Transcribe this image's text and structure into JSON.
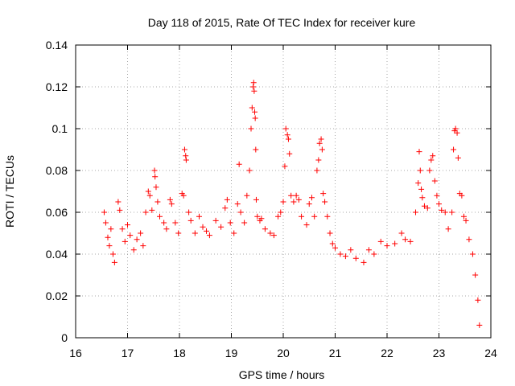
{
  "chart_data": {
    "type": "scatter",
    "title": "Day 118 of 2015, Rate Of TEC Index for receiver kure",
    "xlabel": "GPS time / hours",
    "ylabel": "ROTI / TECUs",
    "xlim": [
      16,
      24
    ],
    "ylim": [
      0,
      0.14
    ],
    "x_ticks": [
      "16",
      "17",
      "18",
      "19",
      "20",
      "21",
      "22",
      "23",
      "24"
    ],
    "y_ticks": [
      "0",
      "0.02",
      "0.04",
      "0.06",
      "0.08",
      "0.1",
      "0.12",
      "0.14"
    ],
    "grid": true,
    "marker": "+",
    "color": "#ff0000",
    "series": [
      {
        "values": [
          [
            16.55,
            0.06
          ],
          [
            16.58,
            0.055
          ],
          [
            16.62,
            0.048
          ],
          [
            16.65,
            0.044
          ],
          [
            16.68,
            0.052
          ],
          [
            16.72,
            0.04
          ],
          [
            16.75,
            0.036
          ],
          [
            16.82,
            0.065
          ],
          [
            16.85,
            0.061
          ],
          [
            16.9,
            0.052
          ],
          [
            16.95,
            0.046
          ],
          [
            17.0,
            0.054
          ],
          [
            17.05,
            0.049
          ],
          [
            17.12,
            0.042
          ],
          [
            17.18,
            0.047
          ],
          [
            17.25,
            0.05
          ],
          [
            17.3,
            0.044
          ],
          [
            17.35,
            0.06
          ],
          [
            17.4,
            0.07
          ],
          [
            17.43,
            0.068
          ],
          [
            17.47,
            0.061
          ],
          [
            17.52,
            0.08
          ],
          [
            17.53,
            0.077
          ],
          [
            17.55,
            0.072
          ],
          [
            17.58,
            0.065
          ],
          [
            17.62,
            0.058
          ],
          [
            17.7,
            0.055
          ],
          [
            17.75,
            0.052
          ],
          [
            17.82,
            0.066
          ],
          [
            17.85,
            0.064
          ],
          [
            17.92,
            0.055
          ],
          [
            17.98,
            0.05
          ],
          [
            18.05,
            0.069
          ],
          [
            18.08,
            0.068
          ],
          [
            18.1,
            0.09
          ],
          [
            18.12,
            0.087
          ],
          [
            18.13,
            0.085
          ],
          [
            18.18,
            0.06
          ],
          [
            18.22,
            0.056
          ],
          [
            18.3,
            0.05
          ],
          [
            18.38,
            0.058
          ],
          [
            18.45,
            0.053
          ],
          [
            18.52,
            0.051
          ],
          [
            18.58,
            0.049
          ],
          [
            18.7,
            0.056
          ],
          [
            18.8,
            0.053
          ],
          [
            18.88,
            0.062
          ],
          [
            18.92,
            0.066
          ],
          [
            18.98,
            0.055
          ],
          [
            19.05,
            0.05
          ],
          [
            19.12,
            0.064
          ],
          [
            19.15,
            0.083
          ],
          [
            19.18,
            0.06
          ],
          [
            19.25,
            0.055
          ],
          [
            19.3,
            0.068
          ],
          [
            19.35,
            0.08
          ],
          [
            19.38,
            0.1
          ],
          [
            19.4,
            0.11
          ],
          [
            19.42,
            0.12
          ],
          [
            19.43,
            0.122
          ],
          [
            19.44,
            0.118
          ],
          [
            19.45,
            0.108
          ],
          [
            19.46,
            0.105
          ],
          [
            19.47,
            0.09
          ],
          [
            19.48,
            0.066
          ],
          [
            19.5,
            0.058
          ],
          [
            19.55,
            0.056
          ],
          [
            19.58,
            0.057
          ],
          [
            19.65,
            0.052
          ],
          [
            19.75,
            0.05
          ],
          [
            19.82,
            0.049
          ],
          [
            19.9,
            0.058
          ],
          [
            19.95,
            0.06
          ],
          [
            20.0,
            0.065
          ],
          [
            20.03,
            0.082
          ],
          [
            20.05,
            0.1
          ],
          [
            20.08,
            0.097
          ],
          [
            20.1,
            0.095
          ],
          [
            20.12,
            0.088
          ],
          [
            20.15,
            0.068
          ],
          [
            20.2,
            0.065
          ],
          [
            20.25,
            0.068
          ],
          [
            20.3,
            0.066
          ],
          [
            20.35,
            0.058
          ],
          [
            20.45,
            0.054
          ],
          [
            20.5,
            0.064
          ],
          [
            20.55,
            0.067
          ],
          [
            20.6,
            0.058
          ],
          [
            20.65,
            0.08
          ],
          [
            20.68,
            0.085
          ],
          [
            20.7,
            0.093
          ],
          [
            20.73,
            0.095
          ],
          [
            20.75,
            0.09
          ],
          [
            20.77,
            0.069
          ],
          [
            20.8,
            0.065
          ],
          [
            20.85,
            0.058
          ],
          [
            20.9,
            0.05
          ],
          [
            20.95,
            0.045
          ],
          [
            21.0,
            0.043
          ],
          [
            21.1,
            0.04
          ],
          [
            21.2,
            0.039
          ],
          [
            21.3,
            0.042
          ],
          [
            21.4,
            0.038
          ],
          [
            21.55,
            0.036
          ],
          [
            21.65,
            0.042
          ],
          [
            21.75,
            0.04
          ],
          [
            21.88,
            0.046
          ],
          [
            22.0,
            0.044
          ],
          [
            22.15,
            0.045
          ],
          [
            22.28,
            0.05
          ],
          [
            22.35,
            0.047
          ],
          [
            22.45,
            0.046
          ],
          [
            22.55,
            0.06
          ],
          [
            22.6,
            0.074
          ],
          [
            22.62,
            0.089
          ],
          [
            22.64,
            0.08
          ],
          [
            22.66,
            0.071
          ],
          [
            22.68,
            0.067
          ],
          [
            22.72,
            0.063
          ],
          [
            22.78,
            0.062
          ],
          [
            22.82,
            0.08
          ],
          [
            22.85,
            0.085
          ],
          [
            22.88,
            0.087
          ],
          [
            22.92,
            0.075
          ],
          [
            22.96,
            0.068
          ],
          [
            23.0,
            0.064
          ],
          [
            23.05,
            0.061
          ],
          [
            23.12,
            0.06
          ],
          [
            23.18,
            0.052
          ],
          [
            23.25,
            0.06
          ],
          [
            23.28,
            0.09
          ],
          [
            23.3,
            0.099
          ],
          [
            23.32,
            0.1
          ],
          [
            23.35,
            0.098
          ],
          [
            23.37,
            0.086
          ],
          [
            23.4,
            0.069
          ],
          [
            23.44,
            0.068
          ],
          [
            23.48,
            0.058
          ],
          [
            23.52,
            0.056
          ],
          [
            23.58,
            0.047
          ],
          [
            23.65,
            0.04
          ],
          [
            23.7,
            0.03
          ],
          [
            23.75,
            0.018
          ],
          [
            23.78,
            0.006
          ]
        ]
      }
    ]
  }
}
